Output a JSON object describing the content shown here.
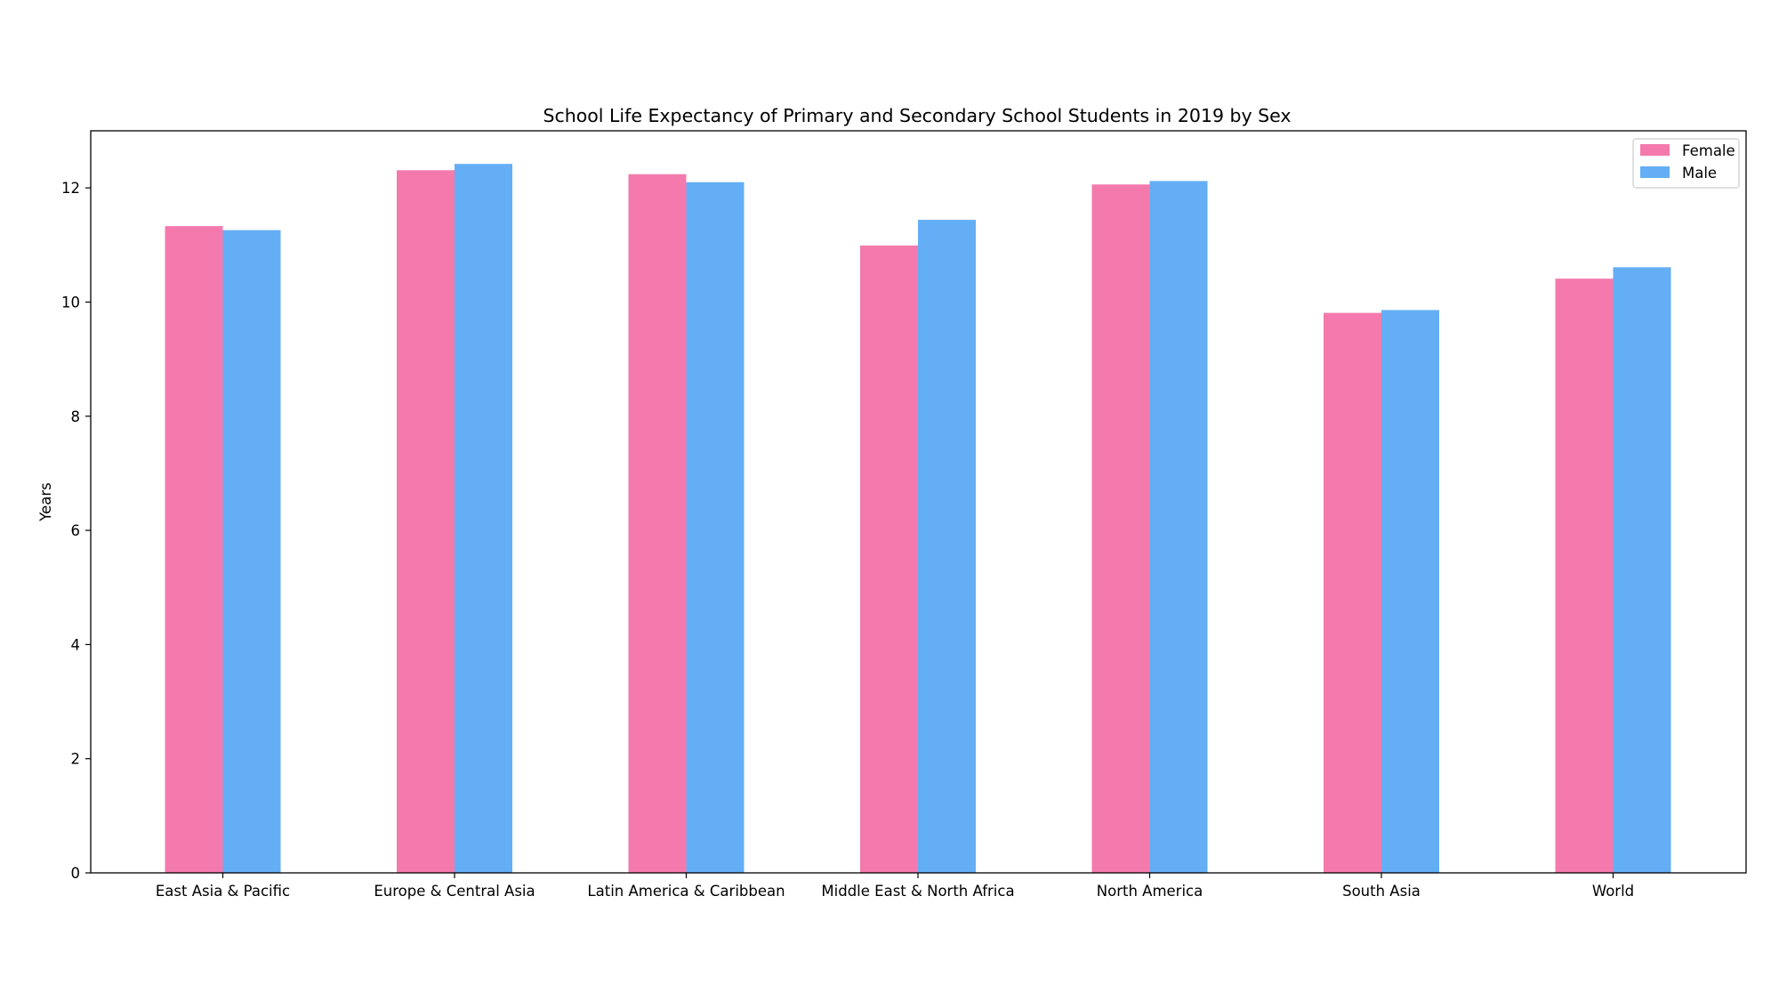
{
  "chart_data": {
    "type": "bar",
    "title": "School Life Expectancy of Primary and Secondary School Students in 2019 by Sex",
    "xlabel": "",
    "ylabel": "Years",
    "categories": [
      "East Asia & Pacific",
      "Europe & Central Asia",
      "Latin America & Caribbean",
      "Middle East & North Africa",
      "North America",
      "South Asia",
      "World"
    ],
    "series": [
      {
        "name": "Female",
        "color": "#f47aad",
        "values": [
          11.33,
          12.31,
          12.24,
          10.99,
          12.06,
          9.81,
          10.41
        ]
      },
      {
        "name": "Male",
        "color": "#64aef5",
        "values": [
          11.26,
          12.42,
          12.1,
          11.44,
          12.12,
          9.86,
          10.61
        ]
      }
    ],
    "ylim": [
      0,
      13.0
    ],
    "yticks": [
      0,
      2,
      4,
      6,
      8,
      10,
      12
    ],
    "grid": false,
    "legend_position": "top-right"
  }
}
